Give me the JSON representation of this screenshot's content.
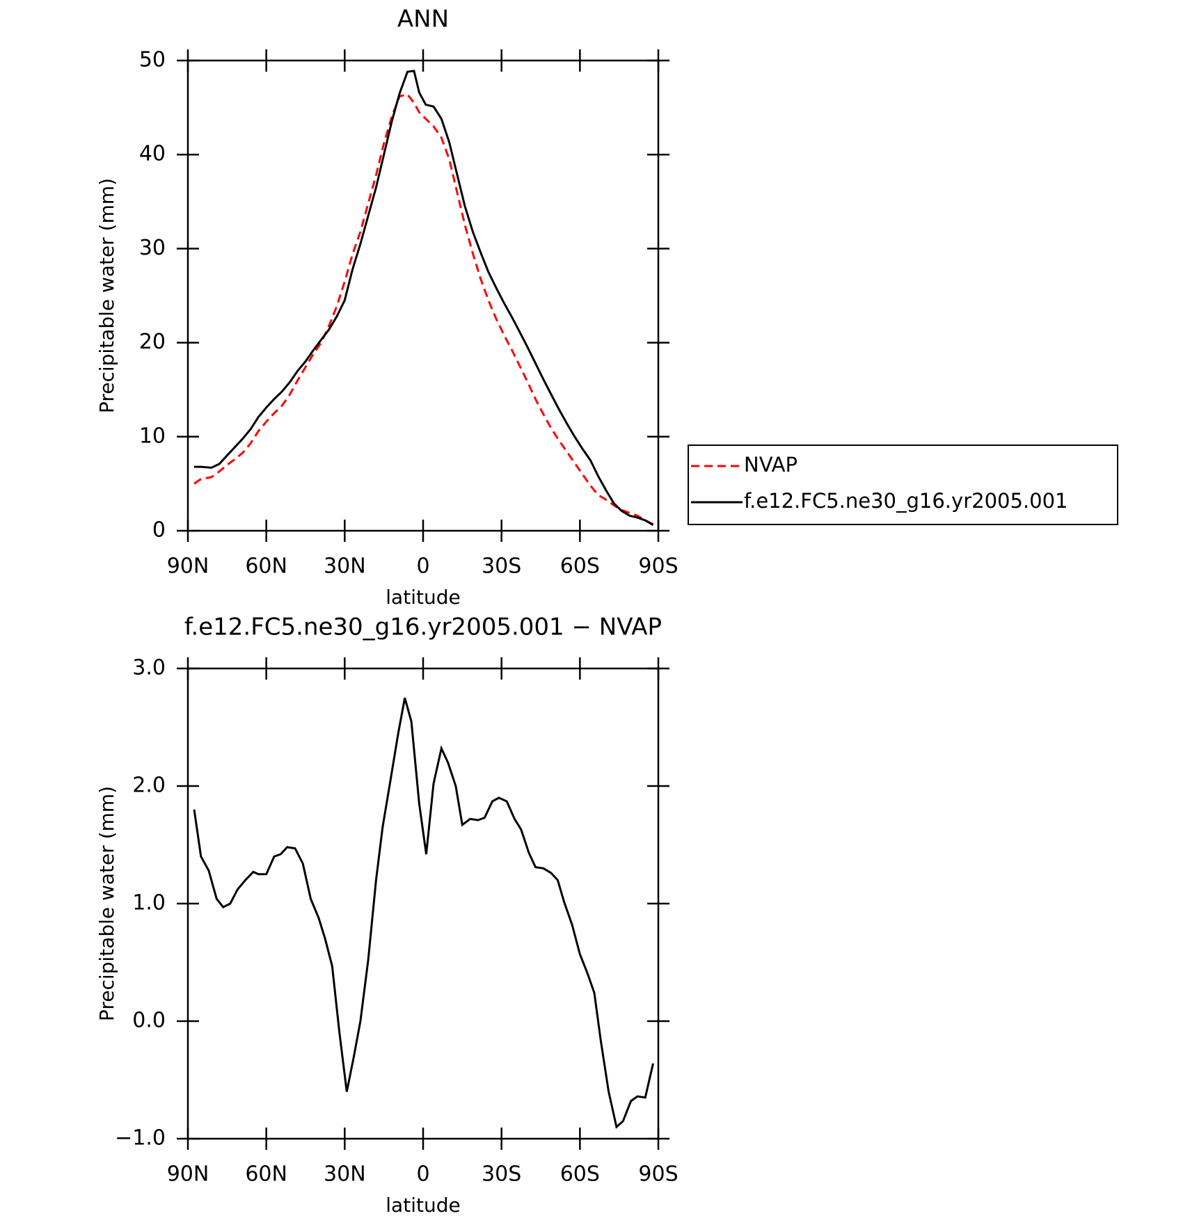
{
  "chart_data": [
    {
      "type": "line",
      "title": "ANN",
      "xlabel": "latitude",
      "ylabel": "Precipitable water (mm)",
      "x": [
        87.6,
        85,
        81,
        78,
        75,
        72,
        69,
        66,
        63,
        60,
        57,
        54,
        51,
        48,
        45,
        42,
        39,
        36,
        33,
        30,
        27,
        24,
        21,
        18,
        15,
        12,
        9,
        6,
        3.5,
        1.5,
        -1,
        -4,
        -7,
        -10,
        -13,
        -16,
        -19,
        -22,
        -25,
        -28,
        -31,
        -34,
        -37,
        -40,
        -43,
        -46,
        -49,
        -52,
        -55,
        -58,
        -61,
        -64,
        -67,
        -70,
        -73,
        -76,
        -79,
        -82,
        -85,
        -88
      ],
      "series": [
        {
          "name": "NVAP",
          "color": "#ff0000",
          "style": "dashed",
          "values": [
            5.0,
            5.5,
            5.7,
            6.3,
            7.0,
            7.6,
            8.3,
            9.3,
            10.6,
            11.6,
            12.5,
            13.3,
            14.5,
            16.0,
            17.4,
            18.8,
            20.0,
            21.8,
            23.9,
            26.5,
            29.4,
            31.8,
            34.8,
            37.8,
            41.2,
            44.0,
            46.2,
            46.4,
            45.5,
            44.5,
            43.8,
            43.0,
            41.8,
            39.5,
            36.0,
            32.5,
            29.5,
            26.8,
            24.5,
            22.5,
            20.8,
            19.2,
            17.5,
            15.8,
            14.0,
            12.4,
            10.9,
            9.6,
            8.4,
            7.2,
            6.0,
            4.8,
            3.8,
            3.3,
            2.7,
            2.2,
            1.9,
            1.6,
            1.1,
            0.7
          ]
        },
        {
          "name": "f.e12.FC5.ne30_g16.yr2005.001",
          "color": "#000000",
          "style": "solid",
          "values": [
            6.8,
            6.8,
            6.7,
            7.1,
            8.0,
            8.9,
            9.8,
            10.8,
            12.1,
            13.1,
            14.0,
            14.8,
            15.8,
            17.0,
            18.0,
            19.2,
            20.3,
            21.4,
            22.8,
            24.5,
            27.8,
            30.5,
            33.5,
            36.5,
            40.0,
            43.5,
            46.5,
            48.8,
            48.9,
            46.6,
            45.3,
            45.1,
            43.8,
            41.3,
            37.9,
            34.5,
            31.8,
            29.6,
            27.5,
            25.8,
            24.2,
            22.7,
            21.1,
            19.5,
            17.8,
            16.1,
            14.5,
            12.9,
            11.4,
            10.0,
            8.7,
            7.5,
            5.8,
            4.3,
            2.9,
            2.1,
            1.6,
            1.4,
            1.1,
            0.6
          ]
        }
      ],
      "xlim": [
        90,
        -90
      ],
      "xticks": [
        {
          "value": 90,
          "label": "90N"
        },
        {
          "value": 60,
          "label": "60N"
        },
        {
          "value": 30,
          "label": "30N"
        },
        0,
        {
          "value": -30,
          "label": "30S"
        },
        {
          "value": -60,
          "label": "60S"
        },
        {
          "value": -90,
          "label": "90S"
        }
      ],
      "ylim": [
        0,
        50
      ],
      "yticks": [
        0,
        10,
        20,
        30,
        40,
        50
      ],
      "legend": "right"
    },
    {
      "type": "line",
      "title": "f.e12.FC5.ne30_g16.yr2005.001 − NVAP",
      "xlabel": "latitude",
      "ylabel": "Precipitable water (mm)",
      "x": [
        87.6,
        85,
        82,
        79,
        76.5,
        73.8,
        71,
        68,
        65,
        63,
        60,
        57,
        54.5,
        52,
        49,
        46,
        43,
        40,
        37.5,
        34.8,
        32,
        29.2,
        26.5,
        24,
        21,
        18,
        15.5,
        12.5,
        9.5,
        7,
        4.5,
        1.5,
        -1.2,
        -4,
        -7,
        -9.5,
        -12.5,
        -15,
        -18,
        -21,
        -23.5,
        -26.5,
        -29,
        -32,
        -35,
        -37.5,
        -40.5,
        -43,
        -46,
        -49,
        -51.5,
        -54,
        -57,
        -60,
        -63,
        -65.5,
        -68,
        -71,
        -74,
        -76.5,
        -79.5,
        -82,
        -85,
        -88
      ],
      "color": "#000000",
      "values": [
        1.8,
        1.4,
        1.28,
        1.04,
        0.97,
        1.0,
        1.12,
        1.2,
        1.27,
        1.25,
        1.25,
        1.4,
        1.42,
        1.48,
        1.47,
        1.34,
        1.04,
        0.88,
        0.7,
        0.47,
        -0.1,
        -0.6,
        -0.3,
        0.0,
        0.52,
        1.2,
        1.65,
        2.05,
        2.45,
        2.75,
        2.55,
        1.85,
        1.42,
        2.02,
        2.32,
        2.2,
        2.0,
        1.67,
        1.72,
        1.71,
        1.73,
        1.87,
        1.9,
        1.87,
        1.72,
        1.63,
        1.43,
        1.31,
        1.3,
        1.26,
        1.2,
        1.01,
        0.82,
        0.57,
        0.4,
        0.24,
        -0.17,
        -0.6,
        -0.9,
        -0.85,
        -0.68,
        -0.64,
        -0.65,
        -0.36
      ],
      "xlim": [
        90,
        -90
      ],
      "xticks": [
        {
          "value": 90,
          "label": "90N"
        },
        {
          "value": 60,
          "label": "60N"
        },
        {
          "value": 30,
          "label": "30N"
        },
        0,
        {
          "value": -30,
          "label": "30S"
        },
        {
          "value": -60,
          "label": "60S"
        },
        {
          "value": -90,
          "label": "90S"
        }
      ],
      "ylim": [
        -1,
        3
      ],
      "yticks": [
        {
          "value": -1,
          "label": "−1.0"
        },
        {
          "value": 0,
          "label": "0.0"
        },
        {
          "value": 1,
          "label": "1.0"
        },
        {
          "value": 2,
          "label": "2.0"
        },
        {
          "value": 3,
          "label": "3.0"
        }
      ]
    }
  ]
}
